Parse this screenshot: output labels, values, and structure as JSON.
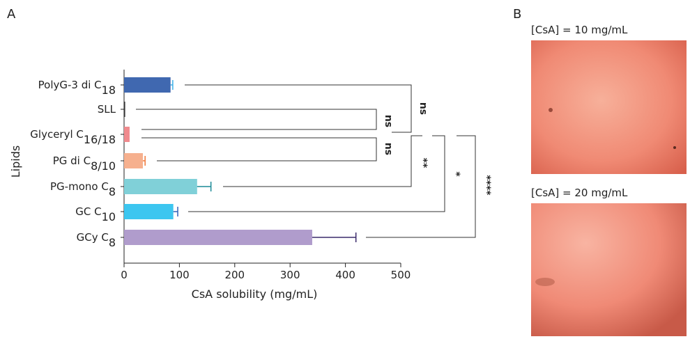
{
  "panel_labels": [
    "A",
    "B"
  ],
  "chart_data": {
    "type": "bar",
    "orientation": "horizontal",
    "x_label": "CsA solubility (mg/mL)",
    "y_label": "Lipids",
    "categories": [
      {
        "text": "PolyG-3 di C",
        "sub": "18"
      },
      {
        "text": "SLL"
      },
      {
        "text": "Glyceryl C",
        "sub": "16/18"
      },
      {
        "text": "PG di C",
        "sub": "8/10"
      },
      {
        "text": "PG-mono C",
        "sub": "8"
      },
      {
        "text": "GC C",
        "sub": "10"
      },
      {
        "text": "GCy C",
        "sub": "8"
      }
    ],
    "values": [
      84,
      2,
      10,
      34,
      132,
      89,
      340
    ],
    "errors": [
      4,
      null,
      null,
      4,
      25,
      8,
      79
    ],
    "colors": [
      "#4068b0",
      "#333333",
      "#f08a8e",
      "#f6b08e",
      "#80d0d8",
      "#3cc6f0",
      "#b09ccc"
    ],
    "error_colors": [
      "#3cb0e8",
      "#333333",
      "#f08a8e",
      "#f07838",
      "#1a8a96",
      "#3060b8",
      "#3a2a6a"
    ],
    "xlim": [
      0,
      500
    ],
    "xticks": [
      0,
      100,
      200,
      300,
      400,
      500
    ],
    "annotations": [
      "ns",
      "ns",
      "ns",
      "**",
      "*",
      "****"
    ]
  },
  "images": [
    {
      "label": "[CsA] = 10 mg/mL"
    },
    {
      "label": "[CsA] = 20 mg/mL"
    }
  ]
}
